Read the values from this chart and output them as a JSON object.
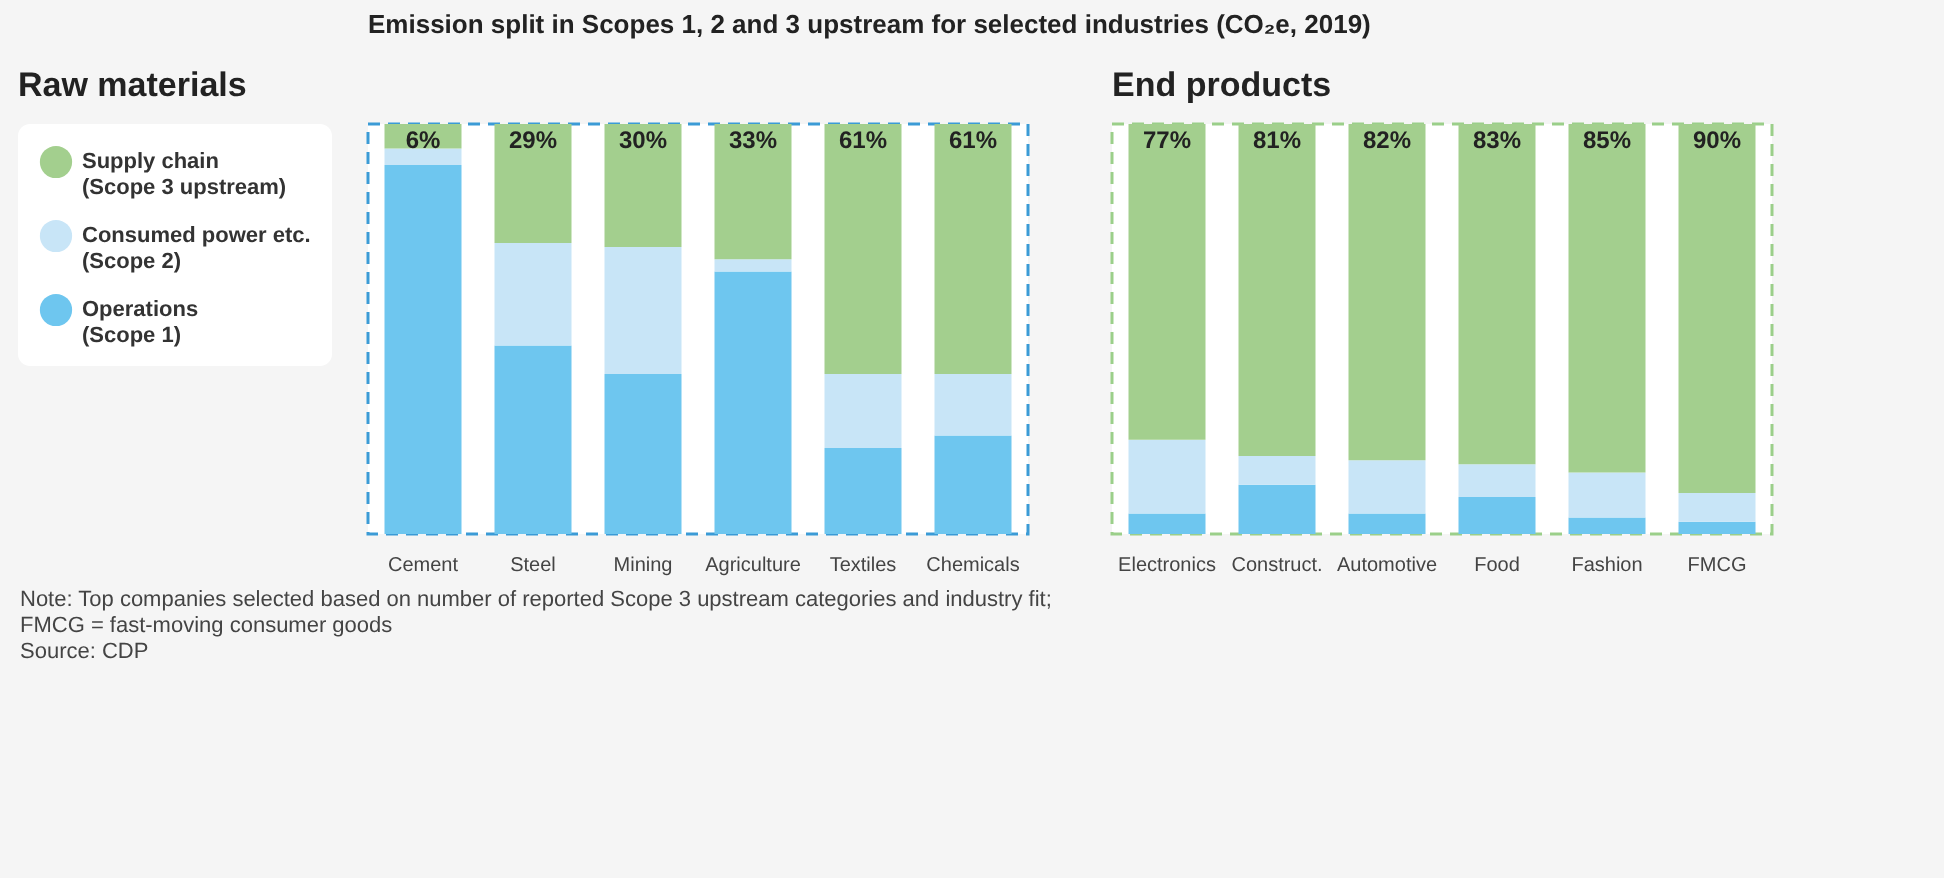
{
  "chart_data": [
    {
      "type": "bar",
      "stacked": true,
      "title": "Emission split in Scopes 1, 2 and 3 upstream for selected industries (CO₂e, 2019)",
      "subtitle": "Raw materials",
      "categories": [
        "Cement",
        "Steel",
        "Mining",
        "Agriculture",
        "Textiles",
        "Chemicals"
      ],
      "ylim": [
        0,
        100
      ],
      "tick_labels": "x",
      "legend": "left",
      "series": [
        {
          "name": "Operations (Scope 1)",
          "color": "#6ec6ef",
          "values": [
            90,
            46,
            39,
            64,
            21,
            24
          ]
        },
        {
          "name": "Consumed power etc. (Scope 2)",
          "color": "#c8e5f7",
          "values": [
            4,
            25,
            31,
            3,
            18,
            15
          ]
        },
        {
          "name": "Supply chain (Scope 3 upstream)",
          "color": "#a3cf8e",
          "values": [
            6,
            29,
            30,
            33,
            61,
            61
          ],
          "value_labels": [
            "6%",
            "29%",
            "30%",
            "33%",
            "61%",
            "61%"
          ]
        }
      ],
      "annotations": [
        "Note: Top companies selected based on number of reported Scope 3 upstream categories and industry fit;",
        "FMCG = fast-moving consumer goods",
        "Source: CDP"
      ]
    },
    {
      "type": "bar",
      "stacked": true,
      "subtitle": "End products",
      "categories": [
        "Electronics",
        "Construct.",
        "Automotive",
        "Food",
        "Fashion",
        "FMCG"
      ],
      "ylim": [
        0,
        100
      ],
      "tick_labels": "x",
      "series": [
        {
          "color": "#6ec6ef",
          "values": [
            5,
            12,
            5,
            9,
            4,
            3
          ]
        },
        {
          "color": "#c8e5f7",
          "values": [
            18,
            7,
            13,
            8,
            11,
            7
          ]
        },
        {
          "color": "#a3cf8e",
          "values": [
            77,
            81,
            82,
            83,
            85,
            90
          ],
          "value_labels": [
            "77%",
            "81%",
            "82%",
            "83%",
            "85%",
            "90%"
          ]
        }
      ]
    }
  ]
}
